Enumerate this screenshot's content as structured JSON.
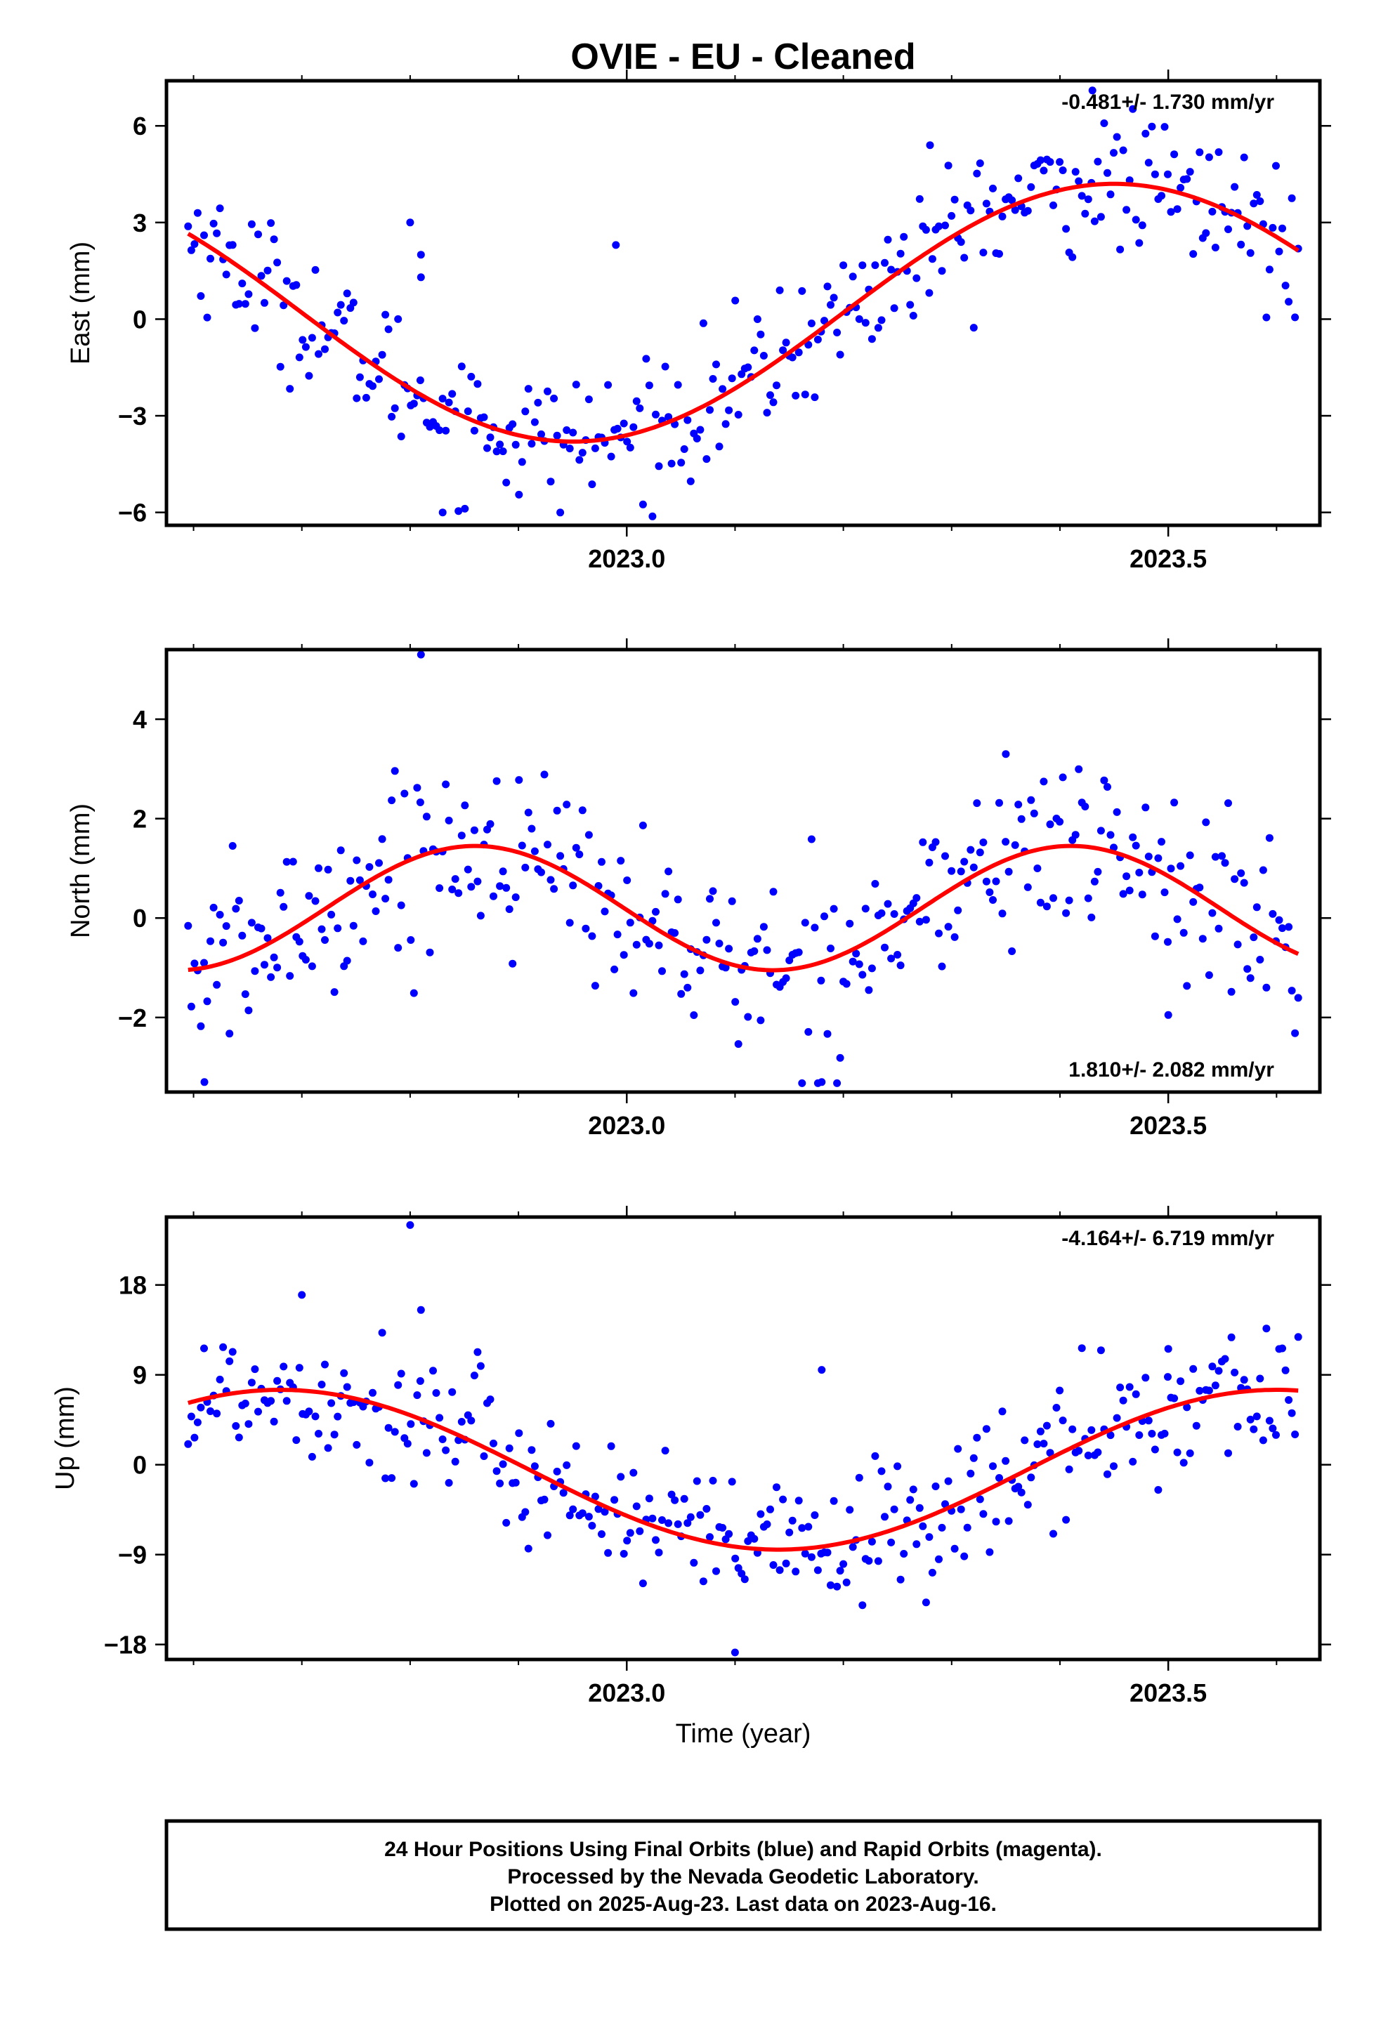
{
  "title": "OVIE  - EU - Cleaned",
  "footer": {
    "line1": "24 Hour Positions Using Final Orbits (blue) and Rapid Orbits (magenta).",
    "line2": "Processed by the Nevada Geodetic Laboratory.",
    "line3": "Plotted on 2025-Aug-23. Last data on 2023-Aug-16."
  },
  "colors": {
    "final_orbits": "#0000ff",
    "fit_curve": "#ff0000",
    "frame": "#000000"
  },
  "chart_data": [
    {
      "type": "scatter",
      "ylabel": "East (mm)",
      "xlabel": "",
      "rate": "-0.481+/- 1.730 mm/yr",
      "rate_position": "top-right",
      "xlim": [
        2022.575,
        2023.64
      ],
      "ylim": [
        -6.4,
        7.4
      ],
      "xticks": [
        2023.0,
        2023.5
      ],
      "xtick_labels": [
        "2023.0",
        "2023.5"
      ],
      "yticks": [
        -6,
        -3,
        0,
        3,
        6
      ],
      "ytick_labels": [
        "−6",
        "−3",
        "0",
        "3",
        "6"
      ],
      "x_start": 2022.595,
      "x_end": 2023.62,
      "fit": {
        "offset": 0.2,
        "amplitude": 4.0,
        "center": 2023.45,
        "period": 1.0
      },
      "scatter_sd": 1.05,
      "outliers": [
        [
          2022.8,
          3.0
        ],
        [
          2022.81,
          2.0
        ],
        [
          2022.81,
          1.3
        ],
        [
          2022.99,
          2.3
        ],
        [
          2023.43,
          7.1
        ],
        [
          2023.28,
          5.4
        ],
        [
          2022.83,
          -6.0
        ]
      ]
    },
    {
      "type": "scatter",
      "ylabel": "North (mm)",
      "xlabel": "",
      "rate": "1.810+/- 2.082 mm/yr",
      "rate_position": "bottom-right",
      "xlim": [
        2022.575,
        2023.64
      ],
      "ylim": [
        -3.5,
        5.4
      ],
      "xticks": [
        2023.0,
        2023.5
      ],
      "xtick_labels": [
        "2023.0",
        "2023.5"
      ],
      "yticks": [
        -2,
        0,
        2,
        4
      ],
      "ytick_labels": [
        "−2",
        "0",
        "2",
        "4"
      ],
      "x_start": 2022.595,
      "x_end": 2023.62,
      "fit": {
        "offset": 0.2,
        "amplitude": 1.25,
        "center": 2023.41,
        "period": 0.55
      },
      "scatter_sd": 0.9,
      "outliers": [
        [
          2022.81,
          5.3
        ],
        [
          2023.35,
          3.3
        ],
        [
          2022.61,
          -3.3
        ],
        [
          2023.18,
          -3.3
        ],
        [
          2023.5,
          -1.95
        ]
      ]
    },
    {
      "type": "scatter",
      "ylabel": "Up (mm)",
      "xlabel": "Time (year)",
      "rate": "-4.164+/- 6.719 mm/yr",
      "rate_position": "top-right",
      "xlim": [
        2022.575,
        2023.64
      ],
      "ylim": [
        -19.5,
        24.8
      ],
      "xticks": [
        2023.0,
        2023.5
      ],
      "xtick_labels": [
        "2023.0",
        "2023.5"
      ],
      "yticks": [
        -18,
        -9,
        0,
        9,
        18
      ],
      "ytick_labels": [
        "−18",
        "−9",
        "0",
        "9",
        "18"
      ],
      "x_start": 2022.595,
      "x_end": 2023.62,
      "fit": {
        "offset": -0.5,
        "amplitude": 8.0,
        "center": 2022.68,
        "period": 0.92
      },
      "scatter_sd": 3.6,
      "outliers": [
        [
          2022.8,
          24.0
        ],
        [
          2022.7,
          17.0
        ],
        [
          2022.81,
          15.5
        ],
        [
          2023.18,
          9.5
        ],
        [
          2023.1,
          -18.8
        ],
        [
          2023.5,
          11.6
        ]
      ]
    }
  ]
}
